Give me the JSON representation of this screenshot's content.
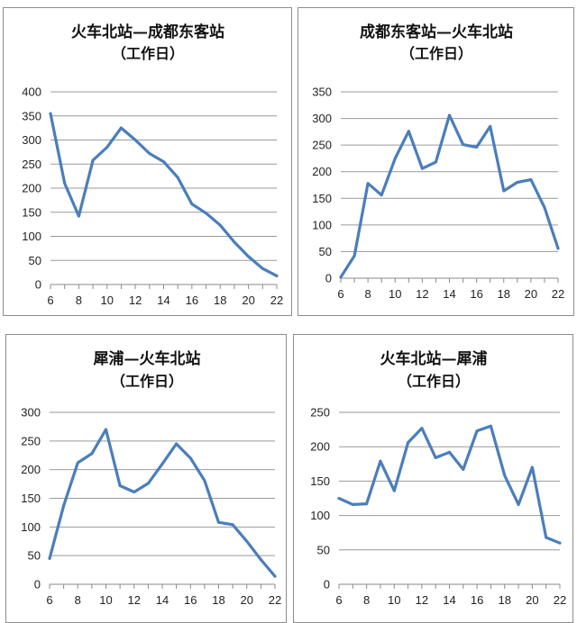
{
  "chart_data": [
    {
      "type": "line",
      "title": "火车北站—成都东客站",
      "subtitle": "（工作日）",
      "x": [
        6,
        7,
        8,
        9,
        10,
        11,
        12,
        13,
        14,
        15,
        16,
        17,
        18,
        19,
        20,
        21,
        22
      ],
      "series": [
        {
          "values": [
            355,
            210,
            142,
            258,
            285,
            325,
            300,
            272,
            255,
            222,
            167,
            148,
            123,
            88,
            58,
            33,
            18
          ]
        }
      ],
      "ylim": [
        0,
        400
      ],
      "yticks": [
        0,
        50,
        100,
        150,
        200,
        250,
        300,
        350,
        400
      ],
      "xticks": [
        6,
        8,
        10,
        12,
        14,
        16,
        18,
        20,
        22
      ],
      "grid": "horizontal",
      "color": "#4a7ebb"
    },
    {
      "type": "line",
      "title": "成都东客站—火车北站",
      "subtitle": "（工作日）",
      "x": [
        6,
        7,
        8,
        9,
        10,
        11,
        12,
        13,
        14,
        15,
        16,
        17,
        18,
        19,
        20,
        21,
        22
      ],
      "series": [
        {
          "values": [
            2,
            42,
            178,
            156,
            225,
            276,
            206,
            218,
            306,
            251,
            246,
            285,
            164,
            180,
            185,
            133,
            56
          ]
        }
      ],
      "ylim": [
        0,
        350
      ],
      "yticks": [
        0,
        50,
        100,
        150,
        200,
        250,
        300,
        350
      ],
      "xticks": [
        6,
        8,
        10,
        12,
        14,
        16,
        18,
        20,
        22
      ],
      "grid": "horizontal",
      "color": "#4a7ebb"
    },
    {
      "type": "line",
      "title": "犀浦—火车北站",
      "subtitle": "（工作日）",
      "x": [
        6,
        7,
        8,
        9,
        10,
        11,
        12,
        13,
        14,
        15,
        16,
        17,
        18,
        19,
        20,
        21,
        22
      ],
      "series": [
        {
          "values": [
            45,
            137,
            212,
            228,
            270,
            172,
            161,
            176,
            210,
            245,
            220,
            181,
            108,
            104,
            75,
            43,
            14
          ]
        }
      ],
      "ylim": [
        0,
        300
      ],
      "yticks": [
        0,
        50,
        100,
        150,
        200,
        250,
        300
      ],
      "xticks": [
        6,
        8,
        10,
        12,
        14,
        16,
        18,
        20,
        22
      ],
      "grid": "horizontal",
      "color": "#4a7ebb"
    },
    {
      "type": "line",
      "title": "火车北站—犀浦",
      "subtitle": "（工作日）",
      "x": [
        6,
        7,
        8,
        9,
        10,
        11,
        12,
        13,
        14,
        15,
        16,
        17,
        18,
        19,
        20,
        21,
        22
      ],
      "series": [
        {
          "values": [
            125,
            116,
            117,
            179,
            136,
            206,
            227,
            184,
            192,
            167,
            223,
            230,
            158,
            116,
            170,
            68,
            60
          ]
        }
      ],
      "ylim": [
        0,
        250
      ],
      "yticks": [
        0,
        50,
        100,
        150,
        200,
        250
      ],
      "xticks": [
        6,
        8,
        10,
        12,
        14,
        16,
        18,
        20,
        22
      ],
      "grid": "horizontal",
      "color": "#4a7ebb"
    }
  ]
}
